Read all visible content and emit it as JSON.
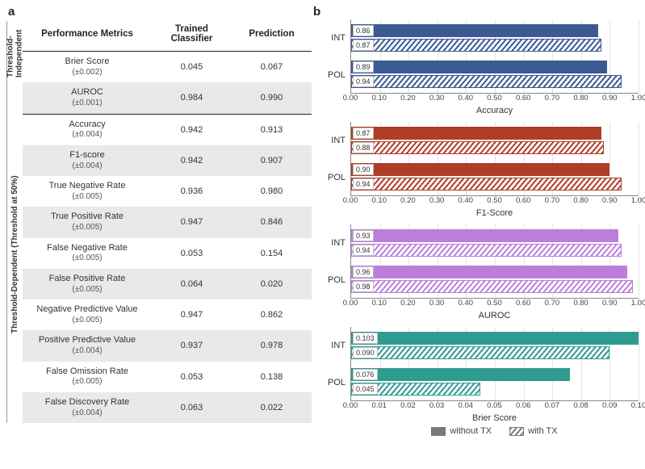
{
  "panel_a": {
    "label": "a",
    "headers": {
      "metric": "Performance Metrics",
      "trained": "Trained Classifier",
      "prediction": "Prediction"
    },
    "section_labels": {
      "independent": "Threshold-\nIndependent",
      "dependent": "Threshold-Dependent (Threshold at 50%)"
    },
    "rows": [
      {
        "section": "independent",
        "shade": false,
        "name": "Brier Score",
        "err": "(±0.002)",
        "trained": "0.045",
        "pred": "0.067"
      },
      {
        "section": "independent",
        "shade": true,
        "name": "AUROC",
        "err": "(±0.001)",
        "trained": "0.984",
        "pred": "0.990"
      },
      {
        "section": "dependent",
        "shade": false,
        "name": "Accuracy",
        "err": "(±0.004)",
        "trained": "0.942",
        "pred": "0.913"
      },
      {
        "section": "dependent",
        "shade": true,
        "name": "F1-score",
        "err": "(±0.004)",
        "trained": "0.942",
        "pred": "0.907"
      },
      {
        "section": "dependent",
        "shade": false,
        "name": "True Negative Rate",
        "err": "(±0.005)",
        "trained": "0.936",
        "pred": "0.980"
      },
      {
        "section": "dependent",
        "shade": true,
        "name": "True Positive Rate",
        "err": "(±0.005)",
        "trained": "0.947",
        "pred": "0.846"
      },
      {
        "section": "dependent",
        "shade": false,
        "name": "False Negative Rate",
        "err": "(±0.005)",
        "trained": "0.053",
        "pred": "0.154"
      },
      {
        "section": "dependent",
        "shade": true,
        "name": "False Positive Rate",
        "err": "(±0.005)",
        "trained": "0.064",
        "pred": "0.020"
      },
      {
        "section": "dependent",
        "shade": false,
        "name": "Negative Predictive Value",
        "err": "(±0.005)",
        "trained": "0.947",
        "pred": "0.862"
      },
      {
        "section": "dependent",
        "shade": true,
        "name": "Positive Predictive Value",
        "err": "(±0.004)",
        "trained": "0.937",
        "pred": "0.978"
      },
      {
        "section": "dependent",
        "shade": false,
        "name": "False Omission Rate",
        "err": "(±0.005)",
        "trained": "0.053",
        "pred": "0.138"
      },
      {
        "section": "dependent",
        "shade": true,
        "name": "False Discovery Rate",
        "err": "(±0.004)",
        "trained": "0.063",
        "pred": "0.022"
      }
    ]
  },
  "panel_b": {
    "label": "b",
    "legend": {
      "solid": "without TX",
      "hatch": "with TX"
    },
    "ylabels": [
      "INT",
      "POL"
    ],
    "grid_color": "#e3e3e3",
    "axis_color": "#888888",
    "charts": [
      {
        "title": "Accuracy",
        "color": "#3b5a93",
        "xmin": 0.0,
        "xmax": 1.0,
        "xstep": 0.1,
        "decimals": 2,
        "groups": [
          {
            "ylab": "INT",
            "solid": 0.86,
            "hatch": 0.87
          },
          {
            "ylab": "POL",
            "solid": 0.89,
            "hatch": 0.94
          }
        ]
      },
      {
        "title": "F1-Score",
        "color": "#b03d28",
        "xmin": 0.0,
        "xmax": 1.0,
        "xstep": 0.1,
        "decimals": 2,
        "groups": [
          {
            "ylab": "INT",
            "solid": 0.87,
            "hatch": 0.88
          },
          {
            "ylab": "POL",
            "solid": 0.9,
            "hatch": 0.94
          }
        ]
      },
      {
        "title": "AUROC",
        "color": "#bb7fda",
        "xmin": 0.0,
        "xmax": 1.0,
        "xstep": 0.1,
        "decimals": 2,
        "groups": [
          {
            "ylab": "INT",
            "solid": 0.93,
            "hatch": 0.94
          },
          {
            "ylab": "POL",
            "solid": 0.96,
            "hatch": 0.98
          }
        ]
      },
      {
        "title": "Brier Score",
        "color": "#2f9b91",
        "xmin": 0.0,
        "xmax": 0.1,
        "xstep": 0.01,
        "decimals": 2,
        "groups": [
          {
            "ylab": "INT",
            "solid": 0.103,
            "hatch": 0.09,
            "label_decimals": 3
          },
          {
            "ylab": "POL",
            "solid": 0.076,
            "hatch": 0.045,
            "label_decimals": 3
          }
        ]
      }
    ]
  }
}
